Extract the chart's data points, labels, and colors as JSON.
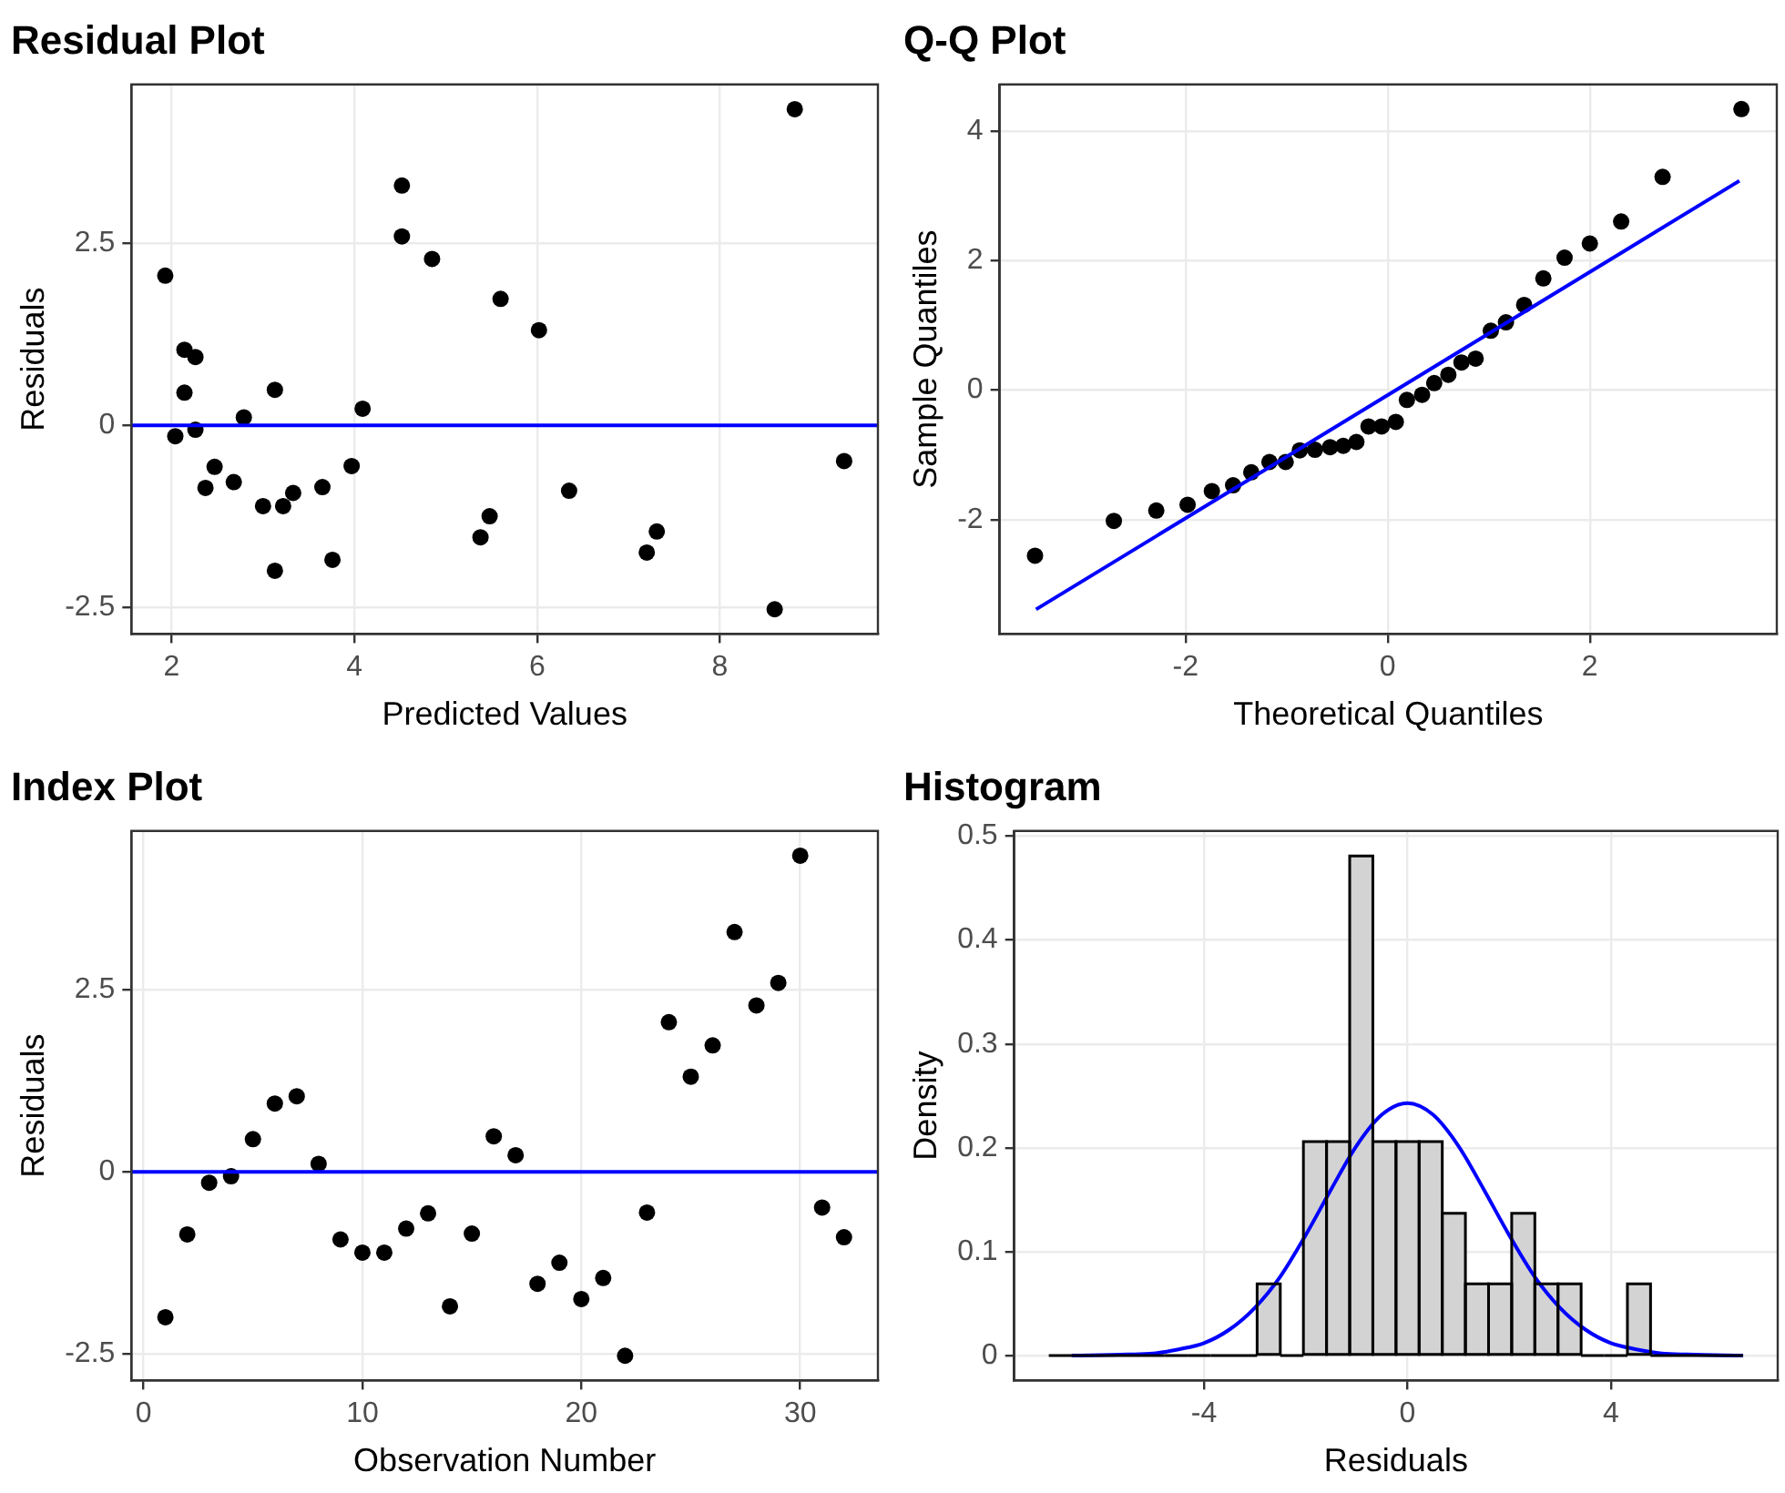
{
  "chart_data": [
    {
      "type": "scatter",
      "title": "Residual Plot",
      "xlabel": "Predicted Values",
      "ylabel": "Residuals",
      "color": "#000000",
      "marker": "circle",
      "grid": true,
      "x": [
        3.13,
        2.37,
        2.04,
        2.26,
        2.14,
        2.26,
        2.14,
        2.79,
        3.33,
        3.0,
        3.22,
        2.68,
        2.47,
        3.76,
        3.65,
        3.13,
        4.09,
        5.38,
        5.48,
        7.2,
        7.31,
        8.6,
        3.97,
        1.93,
        6.02,
        5.6,
        4.52,
        4.85,
        4.52,
        8.82,
        9.36,
        6.35
      ],
      "values": [
        -2.0,
        -0.86,
        -0.15,
        -0.06,
        0.45,
        0.94,
        1.04,
        0.11,
        -0.93,
        -1.11,
        -1.11,
        -0.78,
        -0.57,
        -1.85,
        -0.85,
        0.49,
        0.23,
        -1.54,
        -1.25,
        -1.75,
        -1.46,
        -2.53,
        -0.56,
        2.06,
        1.31,
        1.74,
        3.3,
        2.29,
        2.6,
        4.35,
        -0.49,
        -0.9
      ],
      "xlim": [
        1.56,
        9.73
      ],
      "ylim": [
        -2.87,
        4.69
      ],
      "xticks": [
        2,
        4,
        6,
        8
      ],
      "yticks": [
        -2.5,
        0,
        2.5
      ],
      "ref_lines": [
        {
          "axis": "y",
          "value": 0,
          "color": "#0000ff"
        }
      ]
    },
    {
      "type": "scatter",
      "title": "Q-Q Plot",
      "xlabel": "Theoretical Quantiles",
      "ylabel": "Sample Quantiles",
      "grid": true,
      "series": [
        {
          "type": "scatter",
          "marker": "circle",
          "color": "#000000",
          "x": [
            -3.49,
            -2.71,
            -2.29,
            -1.98,
            -1.74,
            -1.53,
            -1.35,
            -1.17,
            -1.01,
            -0.87,
            -0.72,
            -0.57,
            -0.44,
            -0.31,
            -0.19,
            -0.06,
            0.08,
            0.19,
            0.34,
            0.46,
            0.6,
            0.73,
            0.87,
            1.02,
            1.17,
            1.35,
            1.54,
            1.75,
            2.0,
            2.31,
            2.72,
            3.5
          ],
          "values": [
            -2.56,
            -2.02,
            -1.86,
            -1.77,
            -1.56,
            -1.47,
            -1.27,
            -1.11,
            -1.11,
            -0.93,
            -0.92,
            -0.88,
            -0.86,
            -0.8,
            -0.56,
            -0.56,
            -0.49,
            -0.15,
            -0.07,
            0.11,
            0.24,
            0.43,
            0.49,
            0.92,
            1.05,
            1.32,
            1.73,
            2.05,
            2.27,
            2.61,
            3.3,
            4.35
          ]
        },
        {
          "type": "line",
          "color": "#0000ff",
          "x": [
            -3.48,
            3.48
          ],
          "values": [
            -3.39,
            3.24
          ]
        }
      ],
      "xlim": [
        -3.84,
        3.85
      ],
      "ylim": [
        -3.77,
        4.73
      ],
      "xticks": [
        -2,
        0,
        2
      ],
      "yticks": [
        -2,
        0,
        2,
        4
      ]
    },
    {
      "type": "scatter",
      "title": "Index Plot",
      "xlabel": "Observation Number",
      "ylabel": "Residuals",
      "color": "#000000",
      "marker": "circle",
      "grid": true,
      "x": [
        1,
        2,
        3,
        4,
        5,
        6,
        7,
        8,
        9,
        10,
        11,
        12,
        13,
        14,
        15,
        16,
        17,
        18,
        19,
        20,
        21,
        22,
        23,
        24,
        25,
        26,
        27,
        28,
        29,
        30,
        31,
        32
      ],
      "values": [
        -2.0,
        -0.86,
        -0.15,
        -0.06,
        0.45,
        0.94,
        1.04,
        0.11,
        -0.93,
        -1.11,
        -1.11,
        -0.78,
        -0.57,
        -1.85,
        -0.85,
        0.49,
        0.23,
        -1.54,
        -1.25,
        -1.75,
        -1.46,
        -2.53,
        -0.56,
        2.06,
        1.31,
        1.74,
        3.3,
        2.29,
        2.6,
        4.35,
        -0.49,
        -0.9
      ],
      "xlim": [
        -0.55,
        33.55
      ],
      "ylim": [
        -2.87,
        4.69
      ],
      "xticks": [
        0,
        10,
        20,
        30
      ],
      "yticks": [
        -2.5,
        0,
        2.5
      ],
      "ref_lines": [
        {
          "axis": "y",
          "value": 0,
          "color": "#0000ff"
        }
      ]
    },
    {
      "type": "histogram",
      "title": "Histogram",
      "xlabel": "Residuals",
      "ylabel": "Density",
      "grid": true,
      "series": [
        {
          "type": "histogram",
          "color": "#d3d3d3",
          "bins": [
            -7.05,
            -6.595,
            -6.14,
            -5.685,
            -5.23,
            -4.775,
            -4.32,
            -3.865,
            -3.41,
            -2.955,
            -2.5,
            -2.045,
            -1.59,
            -1.135,
            -0.68,
            -0.225,
            0.23,
            0.685,
            1.14,
            1.595,
            2.05,
            2.505,
            2.96,
            3.415,
            3.87,
            4.325,
            4.78,
            5.235,
            5.69,
            6.145,
            6.6
          ],
          "values": [
            0,
            0,
            0,
            0,
            0,
            0,
            0,
            0,
            0,
            0.069,
            0,
            0.206,
            0.206,
            0.481,
            0.206,
            0.206,
            0.206,
            0.137,
            0.069,
            0.069,
            0.137,
            0.069,
            0.069,
            0,
            0,
            0.069,
            0,
            0,
            0,
            0
          ]
        },
        {
          "type": "line",
          "color": "#0000ff",
          "x": [
            -6.6,
            -5.5,
            -5,
            -4.5,
            -4,
            -3.5,
            -3,
            -2.5,
            -2,
            -1.5,
            -1,
            -0.5,
            0,
            0.5,
            1,
            1.5,
            2,
            2.5,
            3,
            3.5,
            4,
            4.5,
            5,
            5.5,
            6.6
          ],
          "values": [
            0,
            0.001,
            0.002,
            0.006,
            0.012,
            0.025,
            0.046,
            0.076,
            0.116,
            0.16,
            0.202,
            0.232,
            0.243,
            0.232,
            0.202,
            0.16,
            0.116,
            0.076,
            0.046,
            0.025,
            0.012,
            0.006,
            0.002,
            0.001,
            0
          ]
        }
      ],
      "xlim": [
        -7.73,
        7.28
      ],
      "ylim": [
        -0.024,
        0.505
      ],
      "xticks": [
        -4,
        0,
        4
      ],
      "yticks": [
        0,
        0.1,
        0.2,
        0.3,
        0.4,
        0.5
      ]
    }
  ]
}
